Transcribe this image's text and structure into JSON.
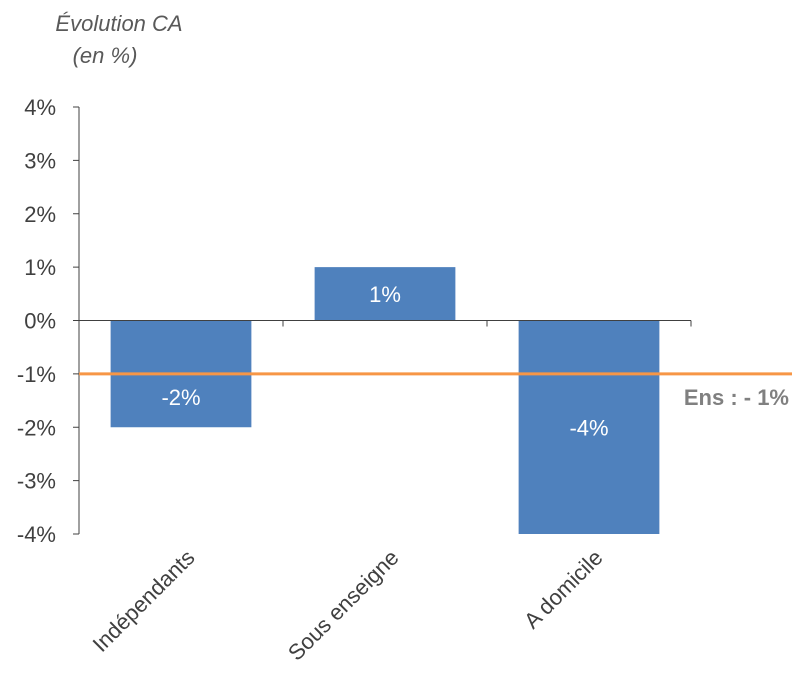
{
  "chart_data": {
    "type": "bar",
    "ylabel_line1": "Évolution  CA",
    "ylabel_line2": "(en %)",
    "categories": [
      "Indépendants",
      "Sous enseigne",
      "A domicile"
    ],
    "values": [
      -2,
      1,
      -4
    ],
    "data_labels": [
      "-2%",
      "1%",
      "-4%"
    ],
    "ylim": [
      -4,
      4
    ],
    "yticks": [
      4,
      3,
      2,
      1,
      0,
      -1,
      -2,
      -3,
      -4
    ],
    "ytick_labels": [
      "4%",
      "3%",
      "2%",
      "1%",
      "0%",
      "-1%",
      "-2%",
      "-3%",
      "-4%"
    ],
    "bar_color": "#4f81bd",
    "reference_line": {
      "value": -1,
      "label": "Ens : - 1%",
      "color": "#f79646"
    },
    "grid": false,
    "legend": "none"
  }
}
